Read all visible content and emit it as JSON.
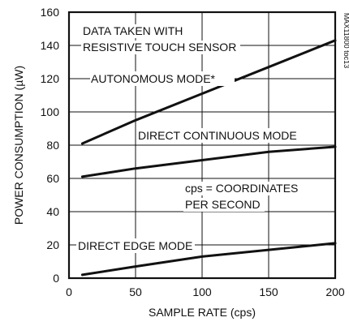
{
  "chart_data": {
    "type": "line",
    "xlabel": "SAMPLE RATE (cps)",
    "ylabel": "POWER CONSUMPTION (µW)",
    "xlim": [
      0,
      200
    ],
    "ylim": [
      0,
      160
    ],
    "xticks": [
      0,
      50,
      100,
      150,
      200
    ],
    "yticks": [
      0,
      20,
      40,
      60,
      80,
      100,
      120,
      140,
      160
    ],
    "grid": true,
    "series": [
      {
        "name": "AUTONOMOUS MODE*",
        "x": [
          10,
          50,
          100,
          150,
          200
        ],
        "y": [
          81,
          95,
          111,
          127,
          143
        ]
      },
      {
        "name": "DIRECT CONTINUOUS MODE",
        "x": [
          10,
          50,
          100,
          150,
          200
        ],
        "y": [
          61,
          66,
          71,
          76,
          79
        ]
      },
      {
        "name": "DIRECT EDGE MODE",
        "x": [
          10,
          50,
          100,
          150,
          200
        ],
        "y": [
          2,
          7,
          13,
          17,
          21
        ]
      }
    ],
    "annotations": [
      {
        "text": "DATA TAKEN WITH"
      },
      {
        "text": "RESISTIVE TOUCH SENSOR"
      },
      {
        "text": "cps = COORDINATES"
      },
      {
        "text": "PER SECOND"
      }
    ],
    "figure_code": "MAX11800 toc13"
  }
}
